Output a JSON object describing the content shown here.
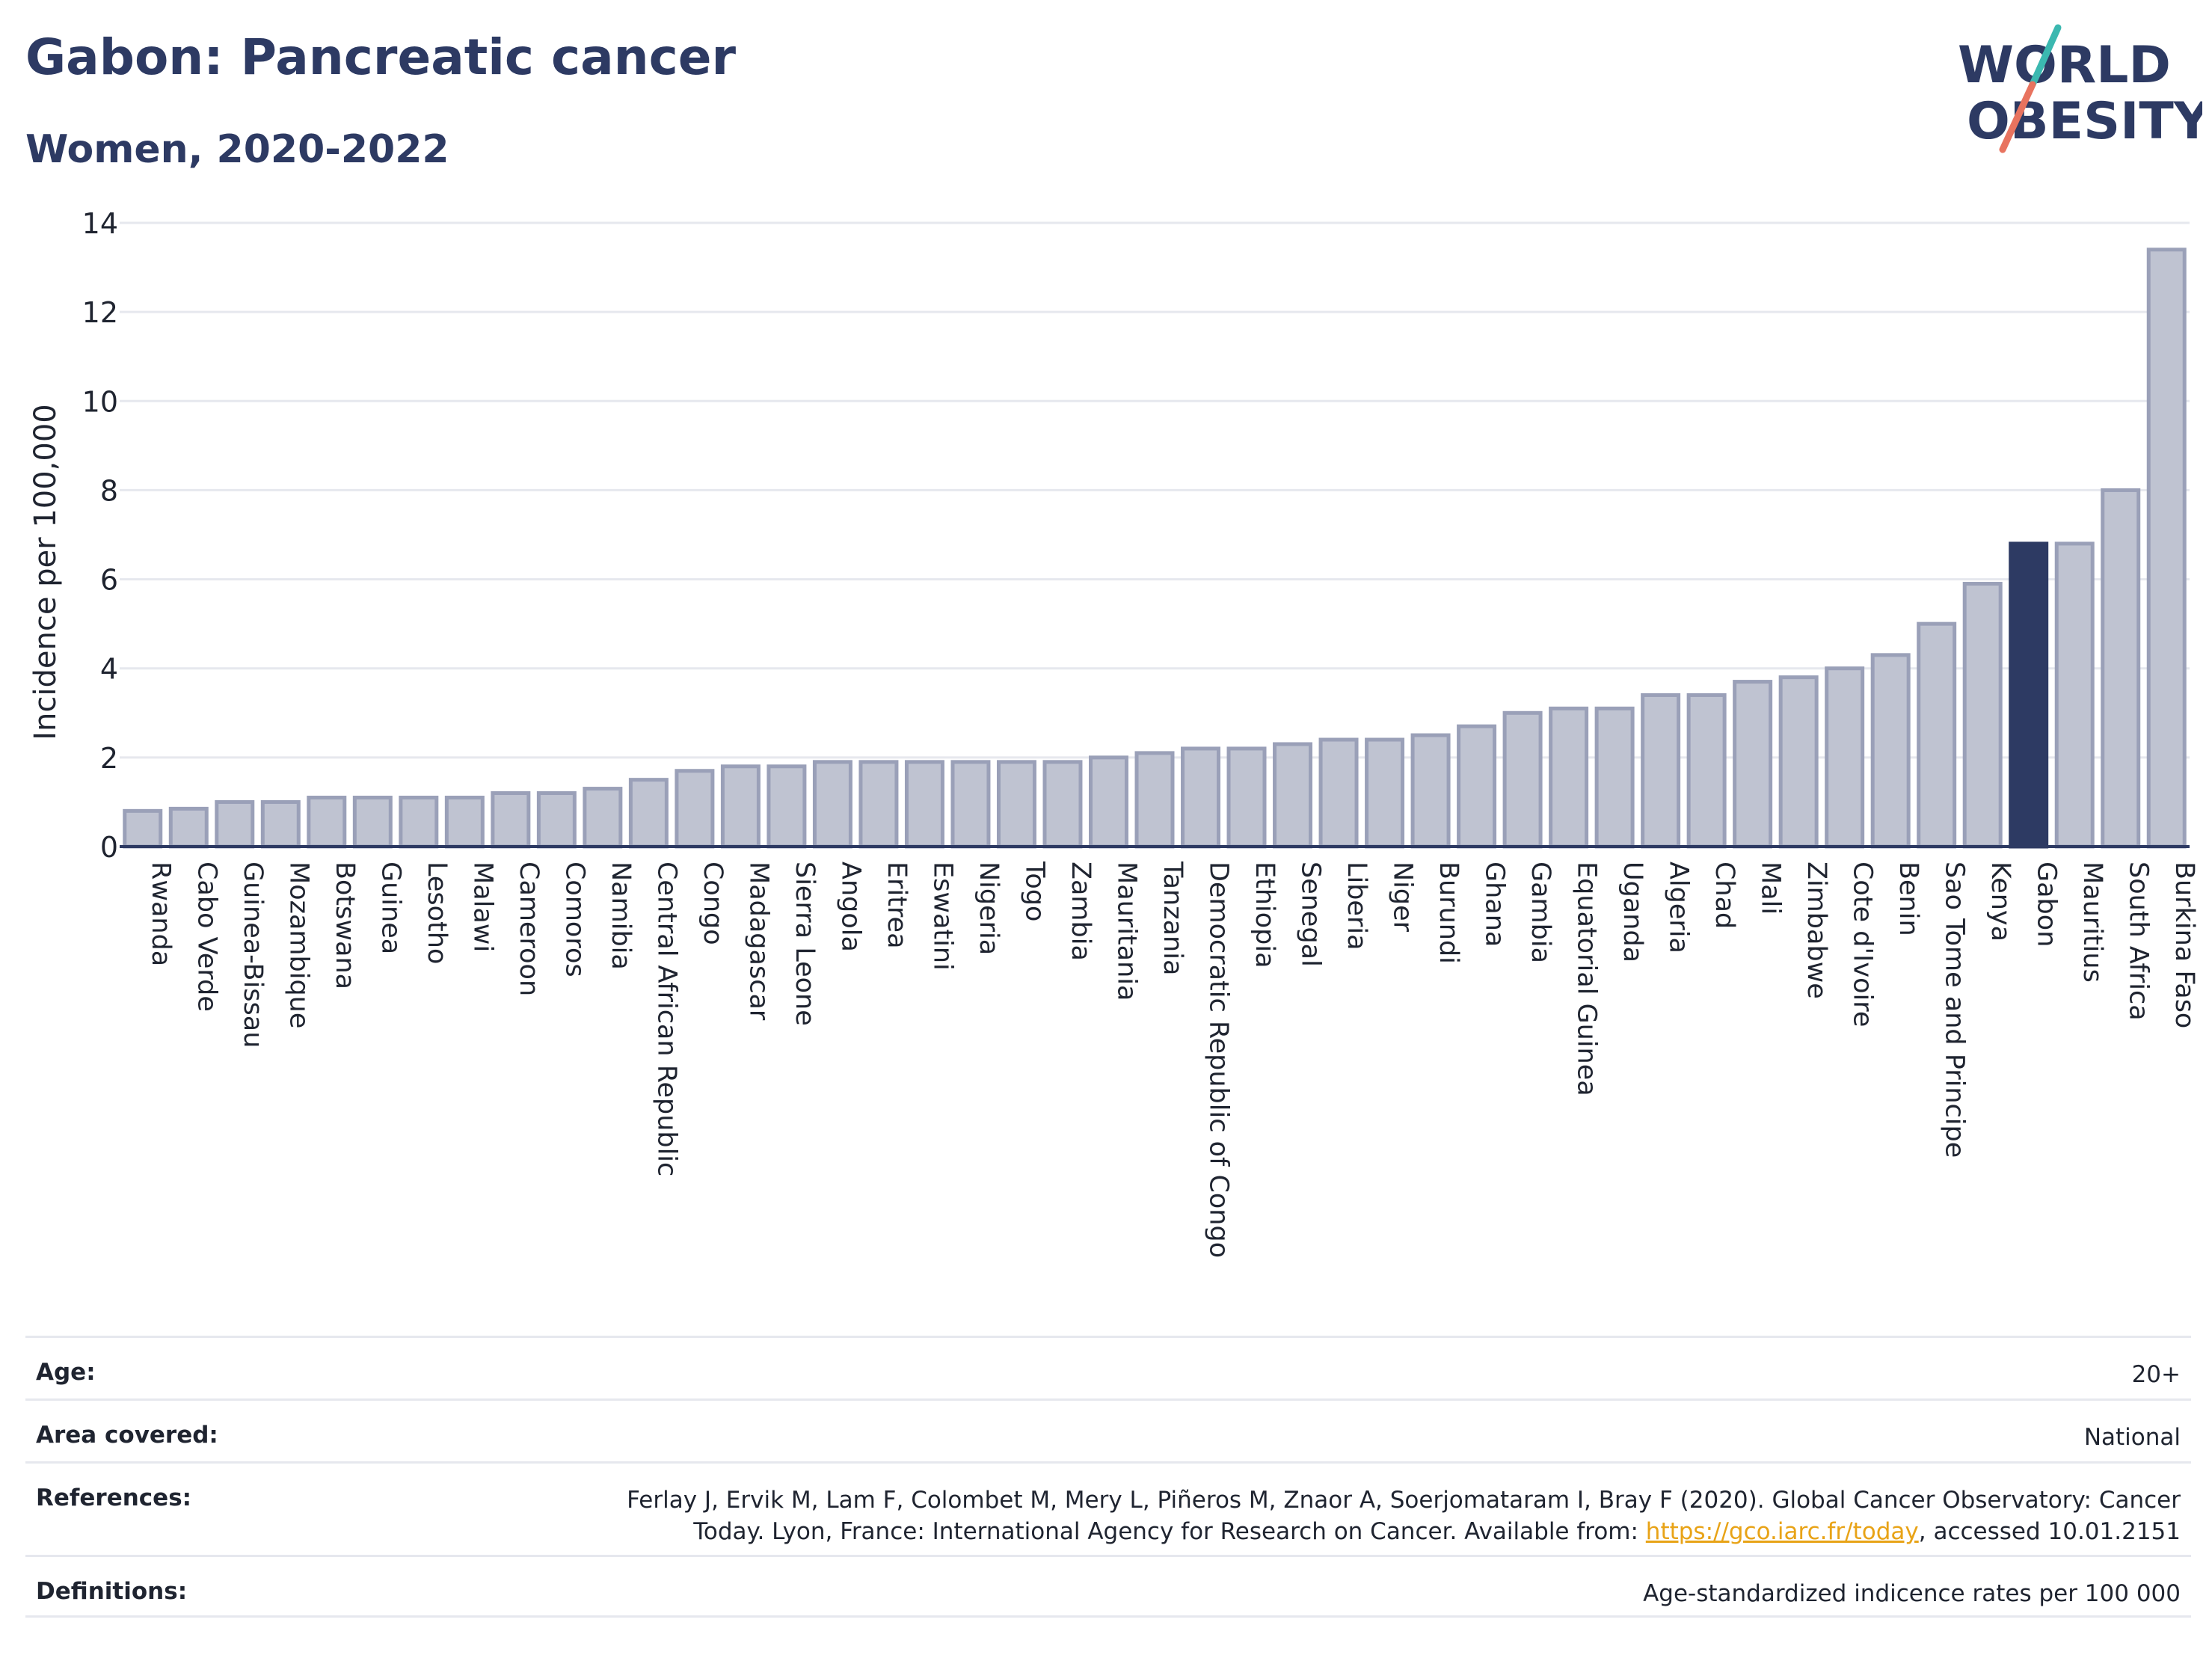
{
  "header": {
    "title": "Gabon: Pancreatic cancer",
    "subtitle": "Women, 2020-2022"
  },
  "logo": {
    "line1": "WORLD",
    "line2": "OBESITY"
  },
  "chart_data": {
    "type": "bar",
    "ylabel": "Incidence per 100,000",
    "xlabel": "",
    "ylim": [
      0,
      14
    ],
    "yticks": [
      0,
      2,
      4,
      6,
      8,
      10,
      12,
      14
    ],
    "grid": true,
    "highlight": "Gabon",
    "colors": {
      "bar": "#bfc3d1",
      "bar_stroke": "#9aa0b8",
      "highlight": "#2d3a63",
      "axis": "#2d3a63",
      "grid": "#e6e8ee"
    },
    "categories": [
      "Rwanda",
      "Cabo Verde",
      "Guinea-Bissau",
      "Mozambique",
      "Botswana",
      "Guinea",
      "Lesotho",
      "Malawi",
      "Cameroon",
      "Comoros",
      "Namibia",
      "Central African Republic",
      "Congo",
      "Madagascar",
      "Sierra Leone",
      "Angola",
      "Eritrea",
      "Eswatini",
      "Nigeria",
      "Togo",
      "Zambia",
      "Mauritania",
      "Tanzania",
      "Democratic Republic of Congo",
      "Ethiopia",
      "Senegal",
      "Liberia",
      "Niger",
      "Burundi",
      "Ghana",
      "Gambia",
      "Equatorial Guinea",
      "Uganda",
      "Algeria",
      "Chad",
      "Mali",
      "Zimbabwe",
      "Cote d'Ivoire",
      "Benin",
      "Sao Tome and Principe",
      "Kenya",
      "Gabon",
      "Mauritius",
      "South Africa",
      "Burkina Faso"
    ],
    "values": [
      0.8,
      0.85,
      1.0,
      1.0,
      1.1,
      1.1,
      1.1,
      1.1,
      1.2,
      1.2,
      1.3,
      1.5,
      1.7,
      1.8,
      1.8,
      1.9,
      1.9,
      1.9,
      1.9,
      1.9,
      1.9,
      2.0,
      2.1,
      2.2,
      2.2,
      2.3,
      2.4,
      2.4,
      2.5,
      2.7,
      3.0,
      3.1,
      3.1,
      3.4,
      3.4,
      3.7,
      3.8,
      4.0,
      4.3,
      5.0,
      5.9,
      6.8,
      6.8,
      8.0,
      13.4
    ]
  },
  "info": {
    "age_label": "Age:",
    "age_value": "20+",
    "area_label": "Area covered:",
    "area_value": "National",
    "references_label": "References:",
    "references_line1": "Ferlay J, Ervik M, Lam F, Colombet M, Mery L, Piñeros M, Znaor A, Soerjomataram I, Bray F (2020). Global Cancer Observatory: Cancer",
    "references_line2_pre": "Today. Lyon, France: International Agency for Research on Cancer. Available from: ",
    "references_link": "https://gco.iarc.fr/today",
    "references_line2_post": ", accessed 10.01.2151",
    "definitions_label": "Definitions:",
    "definitions_value": "Age-standardized indicence rates per 100 000"
  }
}
